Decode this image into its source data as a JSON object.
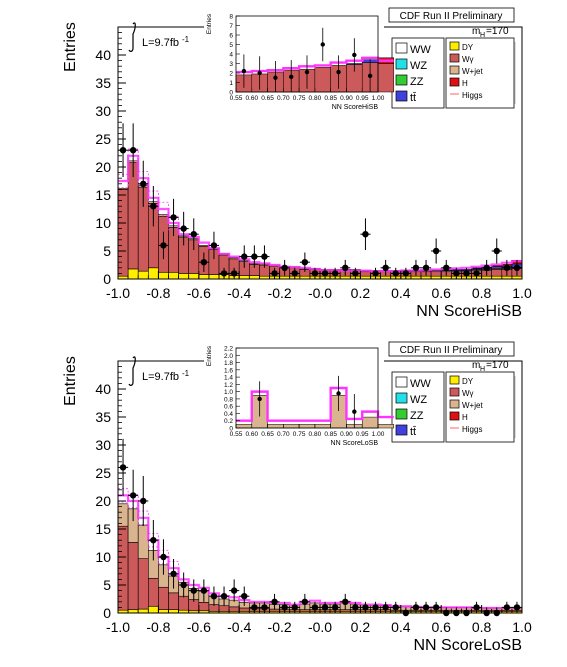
{
  "chart_data": [
    {
      "type": "bar",
      "stacked": true,
      "header": "CDF Run II Preliminary",
      "lumi": "L=9.7fb",
      "lumi_sup": "-1",
      "mass_label": "m",
      "mass_sub": "H",
      "mass_value": "=170",
      "xlabel": "NN ScoreHiSB",
      "ylabel": "Entries",
      "xlim": [
        -1.0,
        1.0
      ],
      "ylim": [
        0,
        45
      ],
      "xticks": [
        "-1.0",
        "-0.8",
        "-0.6",
        "-0.4",
        "-0.2",
        "-0.0",
        "0.2",
        "0.4",
        "0.6",
        "0.8",
        "1.0"
      ],
      "yticks": [
        "0",
        "5",
        "10",
        "15",
        "20",
        "25",
        "30",
        "35",
        "40"
      ],
      "colors": {
        "WW": "#ffffff",
        "WZ": "#22e0e8",
        "ZZ": "#33cc33",
        "tt": "#4040dd",
        "DY": "#ffee00",
        "Wgamma": "#cc5a5a",
        "Wjet": "#d9b48e",
        "H": "#dd1111",
        "Higgs": "#ff33ff",
        "data": "#000000"
      },
      "legend": [
        {
          "key": "WW",
          "label": "WW"
        },
        {
          "key": "WZ",
          "label": "WZ"
        },
        {
          "key": "ZZ",
          "label": "ZZ"
        },
        {
          "key": "tt",
          "label": "tt̄"
        },
        {
          "key": "DY",
          "label": "DY"
        },
        {
          "key": "Wgamma",
          "label": "Wγ"
        },
        {
          "key": "Wjet",
          "label": "W+jet"
        },
        {
          "key": "H",
          "label": "H"
        },
        {
          "key": "Higgs",
          "label": "Higgs"
        }
      ],
      "series": [
        {
          "key": "DY",
          "values": [
            0.5,
            1.8,
            1.4,
            2.0,
            1.2,
            1.2,
            1.0,
            1.0,
            0.8,
            0.8,
            0.8,
            0.6,
            0.6,
            0.6,
            0.5,
            0.5,
            0.5,
            0.5,
            0.5,
            0.5,
            0.5,
            0.5,
            0.5,
            0.5,
            0.5,
            0.5,
            0.5,
            0.5,
            0.5,
            0.5,
            0.5,
            0.5,
            0.5,
            0.5,
            0.5,
            0.5,
            0.5,
            0.5,
            0.5,
            0.5
          ]
        },
        {
          "key": "Wgamma",
          "values": [
            15.5,
            19,
            15,
            11.5,
            10,
            8,
            6.5,
            6,
            5,
            4.5,
            3.5,
            3,
            2.5,
            2,
            2,
            1.8,
            1.5,
            1.5,
            1.2,
            1.2,
            1.0,
            1.0,
            1.0,
            1.0,
            0.8,
            0.8,
            0.8,
            0.8,
            0.8,
            0.8,
            0.8,
            0.8,
            0.8,
            0.8,
            0.8,
            1.0,
            1.0,
            1.2,
            1.2,
            1.4
          ]
        },
        {
          "key": "Wjet",
          "values": [
            0.2,
            0.3,
            0.3,
            0.3,
            0.3,
            0.3,
            0.2,
            0.2,
            0.2,
            0.2,
            0.2,
            0.2,
            0.2,
            0.2,
            0.2,
            0.2,
            0.2,
            0.2,
            0.2,
            0.2,
            0.2,
            0.2,
            0.2,
            0.2,
            0.2,
            0.2,
            0.2,
            0.2,
            0.2,
            0.2,
            0.2,
            0.2,
            0.2,
            0.2,
            0.2,
            0.2,
            0.2,
            0.2,
            0.2,
            0.2
          ]
        },
        {
          "key": "tt",
          "values": [
            0,
            0,
            0,
            0,
            0,
            0,
            0,
            0,
            0,
            0,
            0,
            0,
            0,
            0,
            0,
            0,
            0,
            0,
            0,
            0,
            0,
            0,
            0,
            0,
            0,
            0,
            0,
            0,
            0.1,
            0.1,
            0.1,
            0.1,
            0.2,
            0.2,
            0.2,
            0.2,
            0.3,
            0.3,
            0.4,
            0.6
          ]
        },
        {
          "key": "H",
          "values": [
            0,
            0,
            0,
            0,
            0,
            0,
            0,
            0,
            0,
            0,
            0,
            0,
            0,
            0,
            0,
            0,
            0,
            0,
            0,
            0,
            0,
            0,
            0,
            0,
            0,
            0,
            0,
            0,
            0,
            0,
            0,
            0,
            0,
            0,
            0,
            0.1,
            0.1,
            0.2,
            0.3,
            0.6
          ]
        }
      ],
      "higgs_line": [
        17.5,
        22,
        18,
        14.5,
        12.5,
        10,
        8,
        7.5,
        6.5,
        5.5,
        4.5,
        4,
        3.5,
        3,
        2.8,
        2.5,
        2.2,
        2.1,
        2,
        1.8,
        1.6,
        1.6,
        1.5,
        1.5,
        1.5,
        1.4,
        1.4,
        1.4,
        1.5,
        1.5,
        1.6,
        1.7,
        1.8,
        1.9,
        2,
        2.2,
        2.4,
        2.6,
        2.9,
        3.2
      ],
      "data": {
        "x": [
          -0.975,
          -0.925,
          -0.875,
          -0.825,
          -0.775,
          -0.725,
          -0.675,
          -0.625,
          -0.575,
          -0.525,
          -0.475,
          -0.425,
          -0.375,
          -0.325,
          -0.275,
          -0.225,
          -0.175,
          -0.125,
          -0.075,
          -0.025,
          0.025,
          0.075,
          0.125,
          0.175,
          0.225,
          0.275,
          0.325,
          0.375,
          0.425,
          0.475,
          0.525,
          0.575,
          0.625,
          0.675,
          0.725,
          0.775,
          0.825,
          0.875,
          0.925,
          0.975
        ],
        "y": [
          23,
          23,
          17,
          13,
          6,
          11,
          9,
          8,
          3,
          6,
          1,
          1,
          4,
          4,
          4,
          1,
          2,
          1,
          3,
          1,
          1,
          1,
          2,
          1,
          8,
          1,
          2,
          1,
          1,
          2,
          2,
          5,
          2,
          1,
          1,
          1,
          2,
          5,
          2,
          2
        ]
      },
      "inset": {
        "xlabel": "NN ScoreHiSB",
        "ylabel": "Entries",
        "xlim": [
          0.55,
          1.0
        ],
        "ylim": [
          0,
          8
        ],
        "xticks": [
          "0.55",
          "0.60",
          "0.65",
          "0.70",
          "0.75",
          "0.80",
          "0.85",
          "0.90",
          "0.95",
          "1.00"
        ],
        "yticks": [
          "0",
          "1",
          "2",
          "3",
          "4",
          "5",
          "6",
          "7",
          "8"
        ],
        "background": [
          1.8,
          1.9,
          2.1,
          2.3,
          2.4,
          2.6,
          2.8,
          2.9,
          3.1,
          3.0
        ],
        "signal": [
          0,
          0,
          0,
          0,
          0,
          0,
          0,
          0.1,
          0.3,
          0.6
        ],
        "higgs_line": [
          2.1,
          2.2,
          2.3,
          2.5,
          2.7,
          2.8,
          3.1,
          3.3,
          3.6,
          3.3
        ],
        "data": {
          "x": [
            0.575,
            0.625,
            0.675,
            0.725,
            0.775,
            0.825,
            0.875,
            0.925,
            0.975
          ],
          "y": [
            2.2,
            2.0,
            1.5,
            1.6,
            2.1,
            5.0,
            2.1,
            3.9,
            1.7
          ]
        }
      }
    },
    {
      "type": "bar",
      "stacked": true,
      "header": "CDF Run II Preliminary",
      "lumi": "L=9.7fb",
      "lumi_sup": "-1",
      "mass_label": "m",
      "mass_sub": "H",
      "mass_value": "=170",
      "xlabel": "NN ScoreLoSB",
      "ylabel": "Entries",
      "xlim": [
        -1.0,
        1.0
      ],
      "ylim": [
        0,
        45
      ],
      "xticks": [
        "-1.0",
        "-0.8",
        "-0.6",
        "-0.4",
        "-0.2",
        "-0.0",
        "0.2",
        "0.4",
        "0.6",
        "0.8",
        "1.0"
      ],
      "yticks": [
        "0",
        "5",
        "10",
        "15",
        "20",
        "25",
        "30",
        "35",
        "40"
      ],
      "legend": [
        {
          "key": "WW",
          "label": "WW"
        },
        {
          "key": "WZ",
          "label": "WZ"
        },
        {
          "key": "ZZ",
          "label": "ZZ"
        },
        {
          "key": "tt",
          "label": "tt̄"
        },
        {
          "key": "DY",
          "label": "DY"
        },
        {
          "key": "Wgamma",
          "label": "Wγ"
        },
        {
          "key": "Wjet",
          "label": "W+jet"
        },
        {
          "key": "H",
          "label": "H"
        },
        {
          "key": "Higgs",
          "label": "Higgs"
        }
      ],
      "series": [
        {
          "key": "DY",
          "values": [
            0.5,
            0.6,
            0.7,
            1.2,
            0.6,
            0.6,
            0.5,
            0.4,
            0.4,
            0.3,
            0.3,
            0.3,
            0.3,
            0.3,
            0.3,
            0.3,
            0.3,
            0.3,
            0.3,
            0.3,
            0.3,
            0.3,
            0.3,
            0.3,
            0.3,
            0.3,
            0.3,
            0.3,
            0.3,
            0.3,
            0.3,
            0.3,
            0.3,
            0.3,
            0.3,
            0.3,
            0.3,
            0.3,
            0.3,
            0.3
          ]
        },
        {
          "key": "Wgamma",
          "values": [
            15,
            12,
            9,
            5,
            4,
            3,
            2.5,
            2,
            1.5,
            1.2,
            1.0,
            0.8,
            0.6,
            0.5,
            0.5,
            0.4,
            0.4,
            0.3,
            0.3,
            0.3,
            0.3,
            0.3,
            0.3,
            0.3,
            0.3,
            0.3,
            0.3,
            0.2,
            0.2,
            0.2,
            0.2,
            0.2,
            0.2,
            0.2,
            0.2,
            0.2,
            0.2,
            0.2,
            0.2,
            0.2
          ]
        },
        {
          "key": "Wjet",
          "values": [
            4,
            6,
            6,
            5,
            4,
            3,
            2.5,
            2,
            2,
            1.5,
            1.2,
            1.2,
            1.0,
            1.0,
            1.0,
            0.8,
            0.8,
            0.8,
            1.0,
            1.2,
            1.0,
            1.0,
            1.2,
            1.0,
            0.8,
            0.8,
            0.8,
            0.6,
            0.6,
            0.6,
            0.5,
            0.5,
            0.5,
            0.5,
            0.5,
            0.4,
            0.4,
            0.4,
            0.4,
            0.4
          ]
        }
      ],
      "higgs_line": [
        21,
        20,
        17,
        13,
        10,
        8,
        6,
        5,
        4.5,
        3.5,
        3,
        2.8,
        2.3,
        2,
        2,
        1.8,
        1.8,
        1.5,
        2,
        2.2,
        1.8,
        1.8,
        2,
        1.8,
        1.5,
        1.5,
        1.4,
        1.2,
        1.2,
        1.1,
        1.0,
        1.0,
        1.0,
        1.0,
        1.0,
        0.9,
        0.9,
        0.9,
        0.9,
        0.9
      ],
      "data": {
        "x": [
          -0.975,
          -0.925,
          -0.875,
          -0.825,
          -0.775,
          -0.725,
          -0.675,
          -0.625,
          -0.575,
          -0.525,
          -0.475,
          -0.425,
          -0.375,
          -0.325,
          -0.275,
          -0.225,
          -0.175,
          -0.125,
          -0.075,
          -0.025,
          0.025,
          0.075,
          0.125,
          0.175,
          0.225,
          0.275,
          0.325,
          0.375,
          0.425,
          0.475,
          0.525,
          0.575,
          0.625,
          0.675,
          0.725,
          0.775,
          0.825,
          0.875,
          0.925,
          0.975
        ],
        "y": [
          26,
          21,
          20,
          13,
          10,
          7,
          5,
          4,
          4,
          3,
          3,
          4,
          3,
          1,
          1,
          2,
          1,
          1,
          2,
          1,
          1,
          1,
          2,
          1,
          1,
          1,
          1,
          1,
          0,
          1,
          1,
          1,
          0,
          0,
          0,
          1,
          0,
          0,
          1,
          1
        ]
      },
      "inset": {
        "xlabel": "NN ScoreLoSB",
        "ylabel": "Entries",
        "xlim": [
          0.55,
          1.0
        ],
        "ylim": [
          0,
          2.2
        ],
        "xticks": [
          "0.55",
          "0.60",
          "0.65",
          "0.70",
          "0.75",
          "0.80",
          "0.85",
          "0.90",
          "0.95",
          "1.00"
        ],
        "yticks": [
          "0",
          "0.2",
          "0.4",
          "0.6",
          "0.8",
          "1.0",
          "1.2",
          "1.4",
          "1.6",
          "1.8",
          "2.0",
          "2.2"
        ],
        "background": [
          0.1,
          0.9,
          0.1,
          0.1,
          0.1,
          0.1,
          0.9,
          0.1,
          0.3,
          0.1
        ],
        "higgs_line": [
          0.2,
          1.0,
          0.2,
          0.2,
          0.2,
          0.2,
          1.1,
          0.25,
          0.45,
          0.3
        ],
        "data": {
          "x": [
            0.625,
            0.875,
            0.925
          ],
          "y": [
            0.8,
            0.95,
            0.45
          ]
        }
      }
    }
  ]
}
